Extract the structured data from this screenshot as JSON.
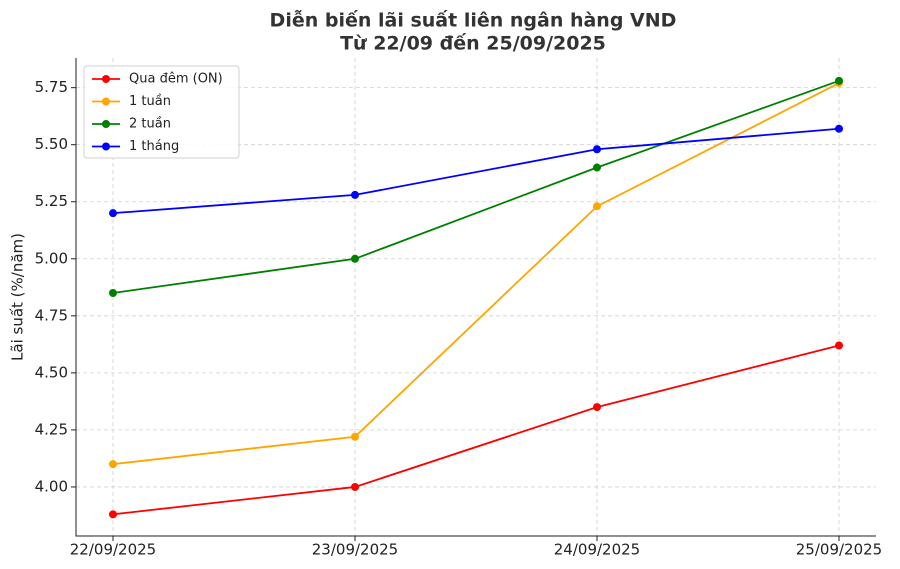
{
  "chart_data": {
    "type": "line",
    "title": "Diễn biến lãi suất liên ngân hàng VND",
    "subtitle": "Từ 22/09 đến 25/09/2025",
    "y_label": "Lãi suất (%/năm)",
    "categories": [
      "22/09/2025",
      "23/09/2025",
      "24/09/2025",
      "25/09/2025"
    ],
    "series": [
      {
        "name": "Qua đêm (ON)",
        "color": "#ff0000",
        "values": [
          3.88,
          4.0,
          4.35,
          4.62
        ]
      },
      {
        "name": "1 tuần",
        "color": "#ffa500",
        "values": [
          4.1,
          4.22,
          5.23,
          5.77
        ]
      },
      {
        "name": "2 tuần",
        "color": "#008000",
        "values": [
          4.85,
          5.0,
          5.4,
          5.78
        ]
      },
      {
        "name": "1 tháng",
        "color": "#0000ff",
        "values": [
          5.2,
          5.28,
          5.48,
          5.57
        ]
      }
    ],
    "ylim": [
      3.785,
      5.88
    ],
    "yticks": [
      {
        "value": 4,
        "label": "4.00"
      },
      {
        "value": 4.25,
        "label": "4.25"
      },
      {
        "value": 4.5,
        "label": "4.50"
      },
      {
        "value": 4.75,
        "label": "4.75"
      },
      {
        "value": 5,
        "label": "5.00"
      },
      {
        "value": 5.25,
        "label": "5.25"
      },
      {
        "value": 5.5,
        "label": "5.50"
      },
      {
        "value": 5.75,
        "label": "5.75"
      }
    ],
    "grid": true,
    "legend": "upper-left"
  }
}
